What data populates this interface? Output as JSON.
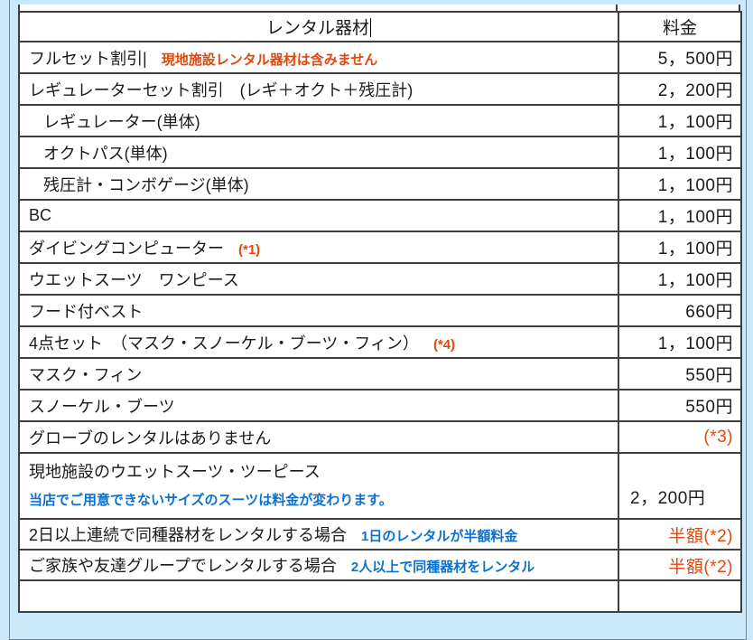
{
  "colors": {
    "background": "#cbe9fb",
    "cell_background": "#ffffff",
    "grid_line": "#3f3f3f",
    "outer_frame": "#6a8694",
    "text": "#1a1a1a",
    "accent_red": "#e2470e",
    "accent_blue": "#0b71d0"
  },
  "table": {
    "header": {
      "equipment": "レンタル器材",
      "fee": "料金"
    },
    "rows": [
      {
        "label": "フルセット割引|",
        "note": {
          "text": "現地施設レンタル器材は含みません",
          "color": "red",
          "layout": "inline"
        },
        "price": {
          "text": "5，500円",
          "color": "black",
          "align": "right"
        }
      },
      {
        "label": "レギュレーターセット割引　(レギ＋オクト＋残圧計)",
        "price": {
          "text": "2，200円",
          "color": "black",
          "align": "right"
        }
      },
      {
        "label": "レギュレーター(単体)",
        "indent": true,
        "price": {
          "text": "1，100円",
          "color": "black",
          "align": "right"
        }
      },
      {
        "label": "オクトパス(単体)",
        "indent": true,
        "price": {
          "text": "1，100円",
          "color": "black",
          "align": "right"
        }
      },
      {
        "label": "残圧計・コンボゲージ(単体)",
        "indent": true,
        "price": {
          "text": "1，100円",
          "color": "black",
          "align": "right"
        }
      },
      {
        "label": "BC",
        "price": {
          "text": "1，100円",
          "color": "black",
          "align": "right"
        }
      },
      {
        "label": "ダイビングコンピューター",
        "note": {
          "text": "(*1)",
          "color": "red",
          "layout": "inline"
        },
        "price": {
          "text": "1，100円",
          "color": "black",
          "align": "right"
        }
      },
      {
        "label": "ウエットスーツ　ワンピース",
        "price": {
          "text": "1，100円",
          "color": "black",
          "align": "right"
        }
      },
      {
        "label": "フード付ベスト",
        "price": {
          "text": "660円",
          "color": "black",
          "align": "right"
        }
      },
      {
        "label": "4点セット　（マスク・スノーケル・ブーツ・フィン）",
        "note": {
          "text": "(*4)",
          "color": "red",
          "layout": "inline"
        },
        "price": {
          "text": "1，100円",
          "color": "black",
          "align": "right"
        }
      },
      {
        "label": "マスク・フィン",
        "price": {
          "text": "550円",
          "color": "black",
          "align": "right"
        }
      },
      {
        "label": "スノーケル・ブーツ",
        "price": {
          "text": "550円",
          "color": "black",
          "align": "right"
        }
      },
      {
        "label": "グローブのレンタルはありません",
        "price": {
          "text": "(*3)",
          "color": "red",
          "align": "right"
        }
      },
      {
        "label": "現地施設のウエットスーツ・ツーピース",
        "tall": true,
        "note": {
          "text": "当店でご用意できないサイズのスーツは料金が変わります。",
          "color": "blue",
          "layout": "below"
        },
        "price": {
          "text": "2，200円",
          "color": "black",
          "align": "left"
        }
      },
      {
        "label": "2日以上連続で同種器材をレンタルする場合",
        "short": true,
        "note": {
          "text": "1日のレンタルが半額料金",
          "color": "blue",
          "layout": "inline"
        },
        "price": {
          "text": "半額(*2)",
          "color": "red",
          "align": "right"
        }
      },
      {
        "label": "ご家族や友達グループでレンタルする場合",
        "short": true,
        "note": {
          "text": "2人以上で同種器材をレンタル",
          "color": "blue",
          "layout": "inline"
        },
        "price": {
          "text": "半額(*2)",
          "color": "red",
          "align": "right"
        }
      },
      {
        "empty": true
      }
    ]
  }
}
